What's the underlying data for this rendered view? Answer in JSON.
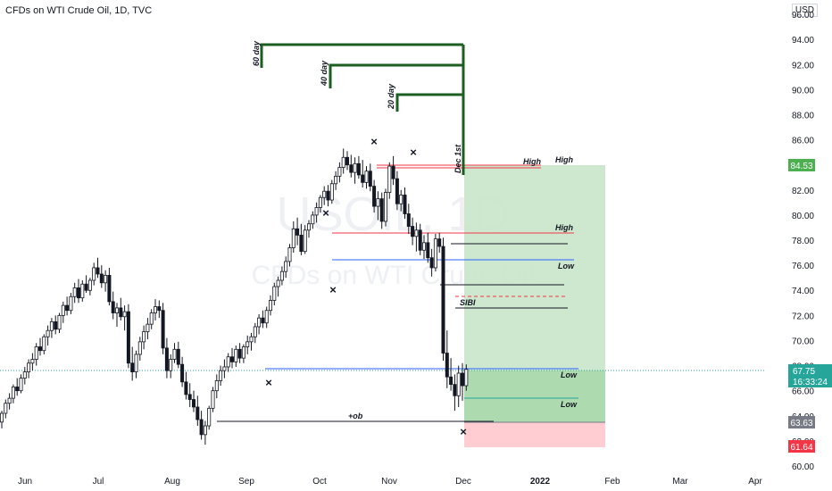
{
  "chart_data": {
    "type": "candlestick",
    "title": "CFDs on WTI Crude Oil, 1D, TVC",
    "watermark_symbol": "USOIL, 1D",
    "watermark_name": "CFDs on WTI Crude Oil",
    "currency": "USD",
    "ylim": [
      60,
      97
    ],
    "y_ticks": [
      "96.00",
      "94.00",
      "92.00",
      "90.00",
      "88.00",
      "86.00",
      "84.00",
      "82.00",
      "80.00",
      "78.00",
      "76.00",
      "74.00",
      "72.00",
      "70.00",
      "68.00",
      "66.00",
      "64.00",
      "62.00",
      "60.00"
    ],
    "x_ticks": [
      "Jun",
      "Jul",
      "Aug",
      "Sep",
      "Oct",
      "Nov",
      "Dec",
      "2022",
      "Feb",
      "Mar",
      "Apr"
    ],
    "price_labels": {
      "target_high": {
        "value": "84.53",
        "color": "#4caf50"
      },
      "last_price": {
        "value": "67.75",
        "countdown": "16:33:24",
        "color": "#26a69a"
      },
      "entry": {
        "value": "63.63",
        "color": "#787b86"
      },
      "stop": {
        "value": "61.64",
        "color": "#f23645"
      }
    },
    "annotations": {
      "day60": "60 day",
      "day40": "40 day",
      "day20": "20 day",
      "dec1": "Dec 1st",
      "high1": "High",
      "high2": "High",
      "high3": "High",
      "low1": "Low",
      "low2": "Low",
      "low3": "Low",
      "sibi": "SIBI",
      "ob": "+ob"
    },
    "series": [
      {
        "values": [
          [
            63.5,
            64.4,
            63.0,
            64.2
          ],
          [
            64.2,
            65.3,
            63.8,
            65.0
          ],
          [
            65.0,
            65.8,
            64.5,
            65.4
          ],
          [
            65.4,
            66.5,
            65.0,
            66.3
          ],
          [
            66.3,
            67.0,
            65.6,
            66.0
          ],
          [
            66.0,
            67.3,
            65.8,
            67.0
          ],
          [
            67.0,
            67.9,
            66.5,
            67.5
          ],
          [
            67.5,
            68.5,
            67.0,
            68.2
          ],
          [
            68.2,
            69.0,
            67.6,
            68.5
          ],
          [
            68.5,
            69.8,
            68.0,
            69.5
          ],
          [
            69.5,
            70.2,
            68.8,
            69.2
          ],
          [
            69.2,
            70.5,
            68.9,
            70.3
          ],
          [
            70.3,
            71.2,
            69.6,
            70.8
          ],
          [
            70.8,
            71.8,
            70.2,
            71.5
          ],
          [
            71.5,
            72.0,
            70.5,
            70.9
          ],
          [
            70.9,
            72.2,
            70.6,
            72.0
          ],
          [
            72.0,
            73.1,
            71.4,
            72.8
          ],
          [
            72.8,
            73.5,
            72.0,
            72.4
          ],
          [
            72.4,
            73.8,
            72.1,
            73.5
          ],
          [
            73.5,
            74.6,
            73.0,
            74.2
          ],
          [
            74.2,
            74.9,
            73.0,
            73.4
          ],
          [
            73.4,
            74.8,
            73.1,
            74.5
          ],
          [
            74.5,
            75.2,
            73.8,
            74.0
          ],
          [
            74.0,
            75.0,
            73.6,
            74.8
          ],
          [
            74.8,
            76.2,
            74.4,
            75.8
          ],
          [
            75.8,
            76.6,
            75.0,
            75.3
          ],
          [
            75.3,
            76.0,
            74.2,
            74.6
          ],
          [
            74.6,
            75.6,
            73.9,
            75.2
          ],
          [
            75.2,
            75.8,
            72.8,
            73.1
          ],
          [
            73.1,
            73.9,
            71.7,
            72.2
          ],
          [
            72.2,
            73.0,
            71.1,
            72.6
          ],
          [
            72.6,
            73.4,
            71.6,
            71.9
          ],
          [
            71.9,
            72.8,
            70.8,
            72.3
          ],
          [
            72.3,
            72.9,
            67.8,
            68.2
          ],
          [
            68.2,
            69.5,
            66.8,
            67.5
          ],
          [
            67.5,
            69.2,
            67.0,
            68.9
          ],
          [
            68.9,
            70.3,
            68.4,
            69.9
          ],
          [
            69.9,
            71.2,
            69.3,
            70.7
          ],
          [
            70.7,
            71.8,
            70.1,
            71.3
          ],
          [
            71.3,
            72.5,
            70.9,
            72.2
          ],
          [
            72.2,
            73.3,
            71.6,
            72.7
          ],
          [
            72.7,
            73.2,
            71.8,
            72.4
          ],
          [
            72.4,
            73.0,
            68.9,
            69.4
          ],
          [
            69.4,
            70.2,
            67.0,
            67.6
          ],
          [
            67.6,
            68.9,
            67.0,
            68.5
          ],
          [
            68.5,
            69.8,
            68.2,
            69.3
          ],
          [
            69.3,
            69.9,
            67.8,
            68.1
          ],
          [
            68.1,
            68.7,
            66.3,
            66.7
          ],
          [
            66.7,
            67.5,
            65.3,
            65.7
          ],
          [
            65.7,
            66.6,
            64.7,
            65.3
          ],
          [
            65.3,
            66.0,
            64.3,
            64.7
          ],
          [
            64.7,
            65.6,
            63.2,
            63.7
          ],
          [
            63.7,
            64.4,
            62.1,
            62.5
          ],
          [
            62.5,
            63.6,
            61.7,
            63.2
          ],
          [
            63.2,
            64.8,
            62.9,
            64.6
          ],
          [
            64.6,
            66.3,
            64.3,
            66.0
          ],
          [
            66.0,
            67.3,
            65.4,
            66.8
          ],
          [
            66.8,
            68.0,
            66.4,
            67.6
          ],
          [
            67.6,
            68.5,
            67.0,
            67.9
          ],
          [
            67.9,
            69.0,
            67.5,
            68.7
          ],
          [
            68.7,
            69.4,
            67.8,
            68.3
          ],
          [
            68.3,
            69.6,
            67.9,
            69.3
          ],
          [
            69.3,
            69.8,
            68.2,
            68.6
          ],
          [
            68.6,
            69.7,
            68.2,
            69.5
          ],
          [
            69.5,
            70.4,
            68.9,
            69.9
          ],
          [
            69.9,
            70.6,
            69.2,
            70.3
          ],
          [
            70.3,
            71.4,
            69.8,
            71.1
          ],
          [
            71.1,
            72.1,
            70.5,
            71.8
          ],
          [
            71.8,
            72.4,
            71.0,
            71.4
          ],
          [
            71.4,
            72.7,
            71.0,
            72.4
          ],
          [
            72.4,
            73.6,
            72.0,
            73.2
          ],
          [
            73.2,
            74.6,
            72.8,
            74.3
          ],
          [
            74.3,
            75.1,
            73.5,
            74.8
          ],
          [
            74.8,
            75.9,
            74.4,
            75.5
          ],
          [
            75.5,
            76.7,
            75.0,
            76.3
          ],
          [
            76.3,
            77.7,
            75.9,
            77.4
          ],
          [
            77.4,
            79.5,
            77.0,
            78.9
          ],
          [
            78.9,
            79.8,
            77.6,
            78.4
          ],
          [
            78.4,
            79.3,
            76.8,
            77.1
          ],
          [
            77.1,
            79.2,
            76.9,
            78.8
          ],
          [
            78.8,
            79.6,
            78.2,
            79.3
          ],
          [
            79.3,
            80.3,
            78.9,
            80.0
          ],
          [
            80.0,
            81.0,
            79.4,
            80.6
          ],
          [
            80.6,
            81.6,
            80.2,
            81.4
          ],
          [
            81.4,
            82.3,
            80.8,
            81.9
          ],
          [
            81.9,
            82.4,
            80.7,
            81.2
          ],
          [
            81.2,
            82.8,
            80.9,
            82.5
          ],
          [
            82.5,
            83.5,
            82.0,
            83.1
          ],
          [
            83.1,
            84.2,
            82.6,
            83.8
          ],
          [
            83.8,
            85.3,
            83.3,
            84.6
          ],
          [
            84.6,
            85.1,
            83.6,
            84.0
          ],
          [
            84.0,
            84.8,
            83.0,
            83.4
          ],
          [
            83.4,
            84.6,
            82.5,
            84.1
          ],
          [
            84.1,
            84.7,
            82.9,
            83.2
          ],
          [
            83.2,
            84.4,
            82.2,
            82.6
          ],
          [
            82.6,
            83.9,
            82.1,
            83.5
          ],
          [
            83.5,
            84.1,
            81.9,
            82.3
          ],
          [
            82.3,
            82.8,
            80.2,
            80.7
          ],
          [
            80.7,
            81.9,
            79.6,
            81.3
          ],
          [
            81.3,
            81.8,
            78.9,
            79.5
          ],
          [
            79.5,
            82.1,
            79.1,
            81.8
          ],
          [
            81.8,
            84.2,
            81.3,
            83.9
          ],
          [
            83.9,
            84.7,
            82.4,
            82.9
          ],
          [
            82.9,
            83.5,
            80.4,
            80.9
          ],
          [
            80.9,
            82.0,
            80.3,
            81.6
          ],
          [
            81.6,
            82.2,
            79.7,
            80.1
          ],
          [
            80.1,
            80.9,
            78.5,
            79.1
          ],
          [
            79.1,
            79.8,
            77.6,
            78.3
          ],
          [
            78.3,
            79.4,
            77.1,
            78.8
          ],
          [
            78.8,
            79.3,
            76.8,
            77.2
          ],
          [
            77.2,
            78.4,
            76.5,
            77.8
          ],
          [
            77.8,
            78.6,
            76.2,
            76.6
          ],
          [
            76.6,
            77.3,
            75.1,
            75.8
          ],
          [
            75.8,
            78.5,
            75.5,
            78.1
          ],
          [
            78.1,
            78.6,
            77.0,
            77.5
          ],
          [
            77.5,
            78.2,
            68.4,
            69.0
          ],
          [
            69.0,
            70.8,
            66.2,
            67.1
          ],
          [
            67.1,
            68.6,
            66.0,
            66.5
          ],
          [
            66.5,
            67.3,
            64.4,
            65.6
          ],
          [
            65.6,
            68.0,
            64.7,
            67.4
          ],
          [
            67.4,
            68.2,
            65.2,
            66.4
          ],
          [
            66.4,
            68.1,
            66.0,
            67.7
          ]
        ]
      }
    ]
  }
}
